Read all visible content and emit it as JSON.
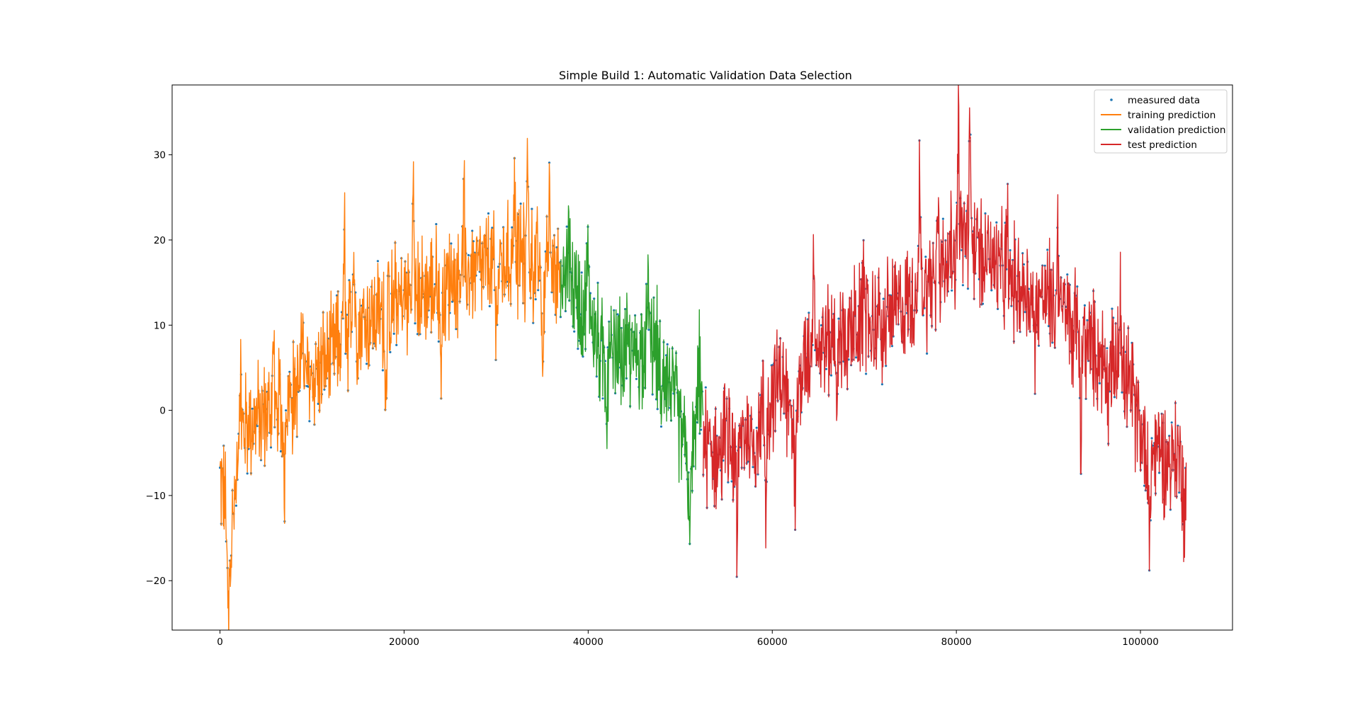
{
  "chart_data": {
    "type": "line",
    "title": "Simple Build 1: Automatic Validation Data Selection",
    "xlabel": "",
    "ylabel": "",
    "xlim": [
      -5200,
      110000
    ],
    "ylim": [
      -25.8,
      38.2
    ],
    "xticks": [
      0,
      20000,
      40000,
      60000,
      80000,
      100000
    ],
    "xtick_labels": [
      "0",
      "20000",
      "40000",
      "60000",
      "80000",
      "100000"
    ],
    "yticks": [
      -20,
      -10,
      0,
      10,
      20,
      30
    ],
    "ytick_labels": [
      "−20",
      "−10",
      "0",
      "10",
      "20",
      "30"
    ],
    "grid": false,
    "legend_position": "top-right",
    "series": [
      {
        "name": "measured data",
        "style": "points",
        "color": "#1f77b4",
        "x_range": [
          0,
          105000
        ]
      },
      {
        "name": "training prediction",
        "style": "line",
        "color": "#ff7f0e",
        "x_range": [
          0,
          37000
        ],
        "trend": [
          [
            0,
            -8
          ],
          [
            500,
            -10
          ],
          [
            1000,
            -17
          ],
          [
            1500,
            -12
          ],
          [
            2500,
            -2
          ],
          [
            4000,
            -1
          ],
          [
            6000,
            0
          ],
          [
            8000,
            2
          ],
          [
            10000,
            4
          ],
          [
            12000,
            6
          ],
          [
            14000,
            10
          ],
          [
            17000,
            11
          ],
          [
            20000,
            13
          ],
          [
            23000,
            14
          ],
          [
            26000,
            16
          ],
          [
            30000,
            17
          ],
          [
            33000,
            18
          ],
          [
            36000,
            16
          ],
          [
            37000,
            14
          ]
        ],
        "extremes": [
          [
            900,
            -23
          ],
          [
            2200,
            5
          ],
          [
            5800,
            9
          ],
          [
            7000,
            -11
          ],
          [
            9000,
            12
          ],
          [
            13500,
            22
          ],
          [
            14500,
            23
          ],
          [
            18000,
            0.5
          ],
          [
            21000,
            27
          ],
          [
            24000,
            3
          ],
          [
            26500,
            28
          ],
          [
            30000,
            6
          ],
          [
            32000,
            28
          ],
          [
            33400,
            33
          ],
          [
            35000,
            6
          ],
          [
            35800,
            30
          ]
        ]
      },
      {
        "name": "validation prediction",
        "style": "line",
        "color": "#2ca02c",
        "x_range": [
          37000,
          52500
        ],
        "trend": [
          [
            37000,
            14
          ],
          [
            38000,
            16
          ],
          [
            39000,
            13
          ],
          [
            40000,
            12
          ],
          [
            41000,
            8
          ],
          [
            42000,
            5
          ],
          [
            43000,
            6
          ],
          [
            44000,
            7
          ],
          [
            45000,
            6
          ],
          [
            46000,
            8
          ],
          [
            47000,
            8
          ],
          [
            48000,
            6
          ],
          [
            49000,
            3
          ],
          [
            50000,
            -2
          ],
          [
            51000,
            -6
          ],
          [
            52000,
            1
          ],
          [
            52500,
            -1
          ]
        ],
        "extremes": [
          [
            38000,
            24
          ],
          [
            40000,
            22
          ],
          [
            42000,
            -4
          ],
          [
            46500,
            16
          ],
          [
            48000,
            -2
          ],
          [
            51000,
            -18
          ],
          [
            52000,
            8
          ]
        ]
      },
      {
        "name": "test prediction",
        "style": "line",
        "color": "#d62728",
        "x_range": [
          52500,
          105000
        ],
        "trend": [
          [
            52500,
            -3
          ],
          [
            54000,
            -6
          ],
          [
            55000,
            -3
          ],
          [
            56000,
            -6
          ],
          [
            57000,
            -2
          ],
          [
            58000,
            -4
          ],
          [
            59000,
            0
          ],
          [
            60000,
            2
          ],
          [
            61000,
            4
          ],
          [
            62000,
            -2
          ],
          [
            63000,
            3
          ],
          [
            64000,
            7
          ],
          [
            66000,
            8
          ],
          [
            68000,
            9
          ],
          [
            70000,
            10
          ],
          [
            72000,
            11
          ],
          [
            74000,
            12
          ],
          [
            76000,
            14
          ],
          [
            78000,
            16
          ],
          [
            80000,
            19
          ],
          [
            81000,
            21
          ],
          [
            82000,
            19
          ],
          [
            84000,
            17
          ],
          [
            86000,
            15
          ],
          [
            88000,
            14
          ],
          [
            90000,
            13
          ],
          [
            92000,
            11
          ],
          [
            94000,
            8
          ],
          [
            96000,
            6
          ],
          [
            98000,
            4
          ],
          [
            99000,
            2
          ],
          [
            100000,
            -2
          ],
          [
            101000,
            -6
          ],
          [
            102000,
            -4
          ],
          [
            103000,
            -6
          ],
          [
            104000,
            -5
          ],
          [
            105000,
            -9
          ]
        ],
        "extremes": [
          [
            56200,
            -18
          ],
          [
            59300,
            -14
          ],
          [
            62500,
            -12
          ],
          [
            64500,
            22
          ],
          [
            67000,
            -2
          ],
          [
            70000,
            24
          ],
          [
            72000,
            5
          ],
          [
            76000,
            30
          ],
          [
            78000,
            28
          ],
          [
            80200,
            35
          ],
          [
            81500,
            34
          ],
          [
            83500,
            22
          ],
          [
            85500,
            28
          ],
          [
            88500,
            4
          ],
          [
            91000,
            23
          ],
          [
            93500,
            -4
          ],
          [
            96500,
            -1
          ],
          [
            97800,
            18
          ],
          [
            101000,
            -16
          ],
          [
            104800,
            -16
          ]
        ]
      }
    ]
  }
}
